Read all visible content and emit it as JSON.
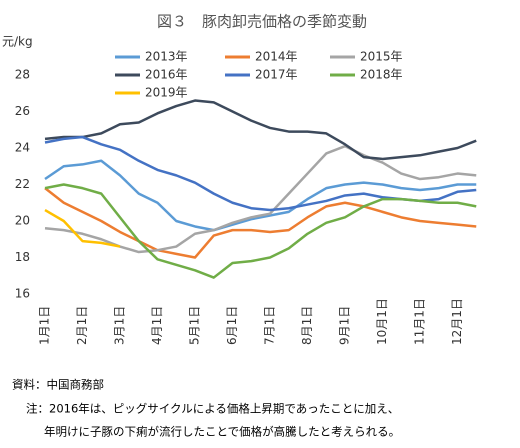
{
  "chart_data": {
    "type": "line",
    "title": "図３　豚肉卸売価格の季節変動",
    "y_label": "元/kg",
    "categories": [
      "1月1日",
      null,
      "2月1日",
      null,
      "3月1日",
      null,
      "4月1日",
      null,
      "5月1日",
      null,
      "6月1日",
      null,
      "7月1日",
      null,
      "8月1日",
      null,
      "9月1日",
      null,
      "10月1日",
      null,
      "11月1日",
      null,
      "12月1日",
      null
    ],
    "ylim": [
      16,
      28
    ],
    "yticks": [
      16,
      18,
      20,
      22,
      24,
      26,
      28
    ],
    "grid": false,
    "series": [
      {
        "name": "2013年",
        "color": "#5b9bd5",
        "values": [
          22.3,
          23.0,
          23.1,
          23.3,
          22.5,
          21.5,
          21.0,
          20.0,
          19.7,
          19.5,
          19.8,
          20.1,
          20.3,
          20.5,
          21.2,
          21.8,
          22.0,
          22.1,
          22.0,
          21.8,
          21.7,
          21.8,
          22.0,
          22.0
        ]
      },
      {
        "name": "2014年",
        "color": "#ed7d31",
        "values": [
          21.8,
          21.0,
          20.5,
          20.0,
          19.4,
          18.9,
          18.4,
          18.2,
          18.0,
          19.2,
          19.5,
          19.5,
          19.4,
          19.5,
          20.2,
          20.8,
          21.0,
          20.8,
          20.5,
          20.2,
          20.0,
          19.9,
          19.8,
          19.7
        ]
      },
      {
        "name": "2015年",
        "color": "#a5a5a5",
        "values": [
          19.6,
          19.5,
          19.3,
          19.0,
          18.6,
          18.3,
          18.4,
          18.6,
          19.3,
          19.5,
          19.9,
          20.2,
          20.4,
          21.5,
          22.6,
          23.7,
          24.1,
          23.6,
          23.2,
          22.6,
          22.3,
          22.4,
          22.6,
          22.5
        ]
      },
      {
        "name": "2016年",
        "color": "#3d4a5c",
        "values": [
          24.5,
          24.6,
          24.6,
          24.8,
          25.3,
          25.4,
          25.9,
          26.3,
          26.6,
          26.5,
          26.0,
          25.5,
          25.1,
          24.9,
          24.9,
          24.8,
          24.2,
          23.5,
          23.4,
          23.5,
          23.6,
          23.8,
          24.0,
          24.4
        ]
      },
      {
        "name": "2017年",
        "color": "#4472c4",
        "values": [
          24.3,
          24.5,
          24.6,
          24.2,
          23.9,
          23.3,
          22.8,
          22.5,
          22.1,
          21.5,
          21.0,
          20.7,
          20.6,
          20.7,
          20.9,
          21.1,
          21.4,
          21.5,
          21.3,
          21.2,
          21.1,
          21.2,
          21.6,
          21.7
        ]
      },
      {
        "name": "2018年",
        "color": "#70ad47",
        "values": [
          21.8,
          22.0,
          21.8,
          21.5,
          20.2,
          18.9,
          17.9,
          17.6,
          17.3,
          16.9,
          17.7,
          17.8,
          18.0,
          18.5,
          19.3,
          19.9,
          20.2,
          20.8,
          21.2,
          21.2,
          21.1,
          21.0,
          21.0,
          20.8
        ]
      },
      {
        "name": "2019年",
        "color": "#ffc000",
        "values": [
          20.6,
          20.0,
          18.9,
          18.8,
          18.6,
          null,
          null,
          null,
          null,
          null,
          null,
          null,
          null,
          null,
          null,
          null,
          null,
          null,
          null,
          null,
          null,
          null,
          null,
          null
        ]
      }
    ],
    "source": "資料：中国商務部",
    "note": [
      "注：2016年は、ピッグサイクルによる価格上昇期であったことに加え、",
      "年明けに子豚の下痢が流行したことで価格が高騰したと考えられる。"
    ]
  }
}
